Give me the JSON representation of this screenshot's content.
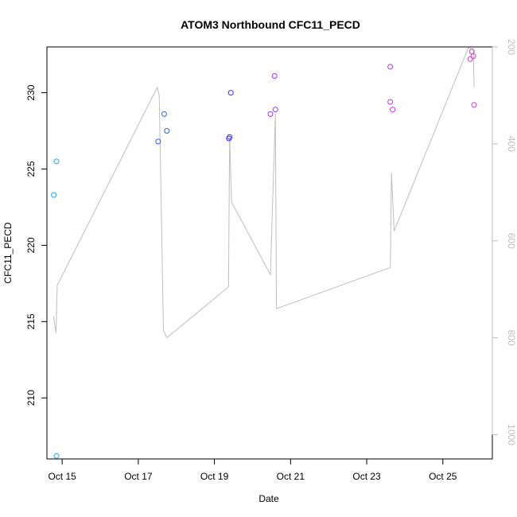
{
  "chart_data": {
    "type": "scatter",
    "title": "ATOM3 Northbound CFC11_PECD",
    "xlabel": "Date",
    "ylabel": "CFC11_PECD",
    "x_domain_days": [
      14.6,
      26.3
    ],
    "ylim": [
      206,
      233
    ],
    "y2lim": [
      1050,
      200
    ],
    "grid": false,
    "legend": "none",
    "x_ticks": [
      {
        "day": 15,
        "label": "Oct 15"
      },
      {
        "day": 17,
        "label": "Oct 17"
      },
      {
        "day": 19,
        "label": "Oct 19"
      },
      {
        "day": 21,
        "label": "Oct 21"
      },
      {
        "day": 23,
        "label": "Oct 23"
      },
      {
        "day": 25,
        "label": "Oct 25"
      }
    ],
    "y_ticks": [
      210,
      215,
      220,
      225,
      230
    ],
    "y2_ticks": [
      200,
      400,
      600,
      800,
      1000
    ],
    "colors": {
      "axis": "#000000",
      "right_axis": "#bebebe",
      "altitude_line": "#bebebe"
    },
    "series": [
      {
        "points": [
          {
            "x": 14.78,
            "y": 223.3,
            "color": "#1fa7ff"
          },
          {
            "x": 14.85,
            "y": 225.5,
            "color": "#1fa7ff"
          },
          {
            "x": 14.85,
            "y": 206.2,
            "color": "#1fa7ff"
          },
          {
            "x": 17.52,
            "y": 226.8,
            "color": "#1e64ff"
          },
          {
            "x": 17.68,
            "y": 228.6,
            "color": "#1e64ff"
          },
          {
            "x": 17.75,
            "y": 227.5,
            "color": "#1e64ff"
          },
          {
            "x": 19.38,
            "y": 227.0,
            "color": "#3a2cff"
          },
          {
            "x": 19.4,
            "y": 227.1,
            "color": "#3a2cff"
          },
          {
            "x": 19.43,
            "y": 230.0,
            "color": "#3a2cff"
          },
          {
            "x": 20.47,
            "y": 228.6,
            "color": "#a030ff"
          },
          {
            "x": 20.58,
            "y": 231.1,
            "color": "#a030ff"
          },
          {
            "x": 20.6,
            "y": 228.9,
            "color": "#a030ff"
          },
          {
            "x": 23.62,
            "y": 231.7,
            "color": "#c030f0"
          },
          {
            "x": 23.62,
            "y": 229.4,
            "color": "#c030f0"
          },
          {
            "x": 23.68,
            "y": 228.9,
            "color": "#c030f0"
          },
          {
            "x": 25.72,
            "y": 232.2,
            "color": "#e030d8"
          },
          {
            "x": 25.76,
            "y": 232.7,
            "color": "#e030d8"
          },
          {
            "x": 25.8,
            "y": 232.4,
            "color": "#e030d8"
          },
          {
            "x": 25.82,
            "y": 229.2,
            "color": "#e030d8"
          }
        ]
      },
      {
        "type": "line",
        "axis": "right",
        "points": [
          [
            14.77,
            755
          ],
          [
            14.84,
            790
          ],
          [
            14.87,
            692
          ],
          [
            17.5,
            283
          ],
          [
            17.55,
            300
          ],
          [
            17.66,
            785
          ],
          [
            17.75,
            800
          ],
          [
            19.37,
            695
          ],
          [
            19.4,
            385
          ],
          [
            19.45,
            520
          ],
          [
            20.47,
            670
          ],
          [
            20.6,
            338
          ],
          [
            20.63,
            740
          ],
          [
            23.62,
            655
          ],
          [
            23.65,
            460
          ],
          [
            23.72,
            580
          ],
          [
            25.67,
            202
          ],
          [
            25.8,
            205
          ],
          [
            25.82,
            283
          ]
        ]
      }
    ]
  }
}
